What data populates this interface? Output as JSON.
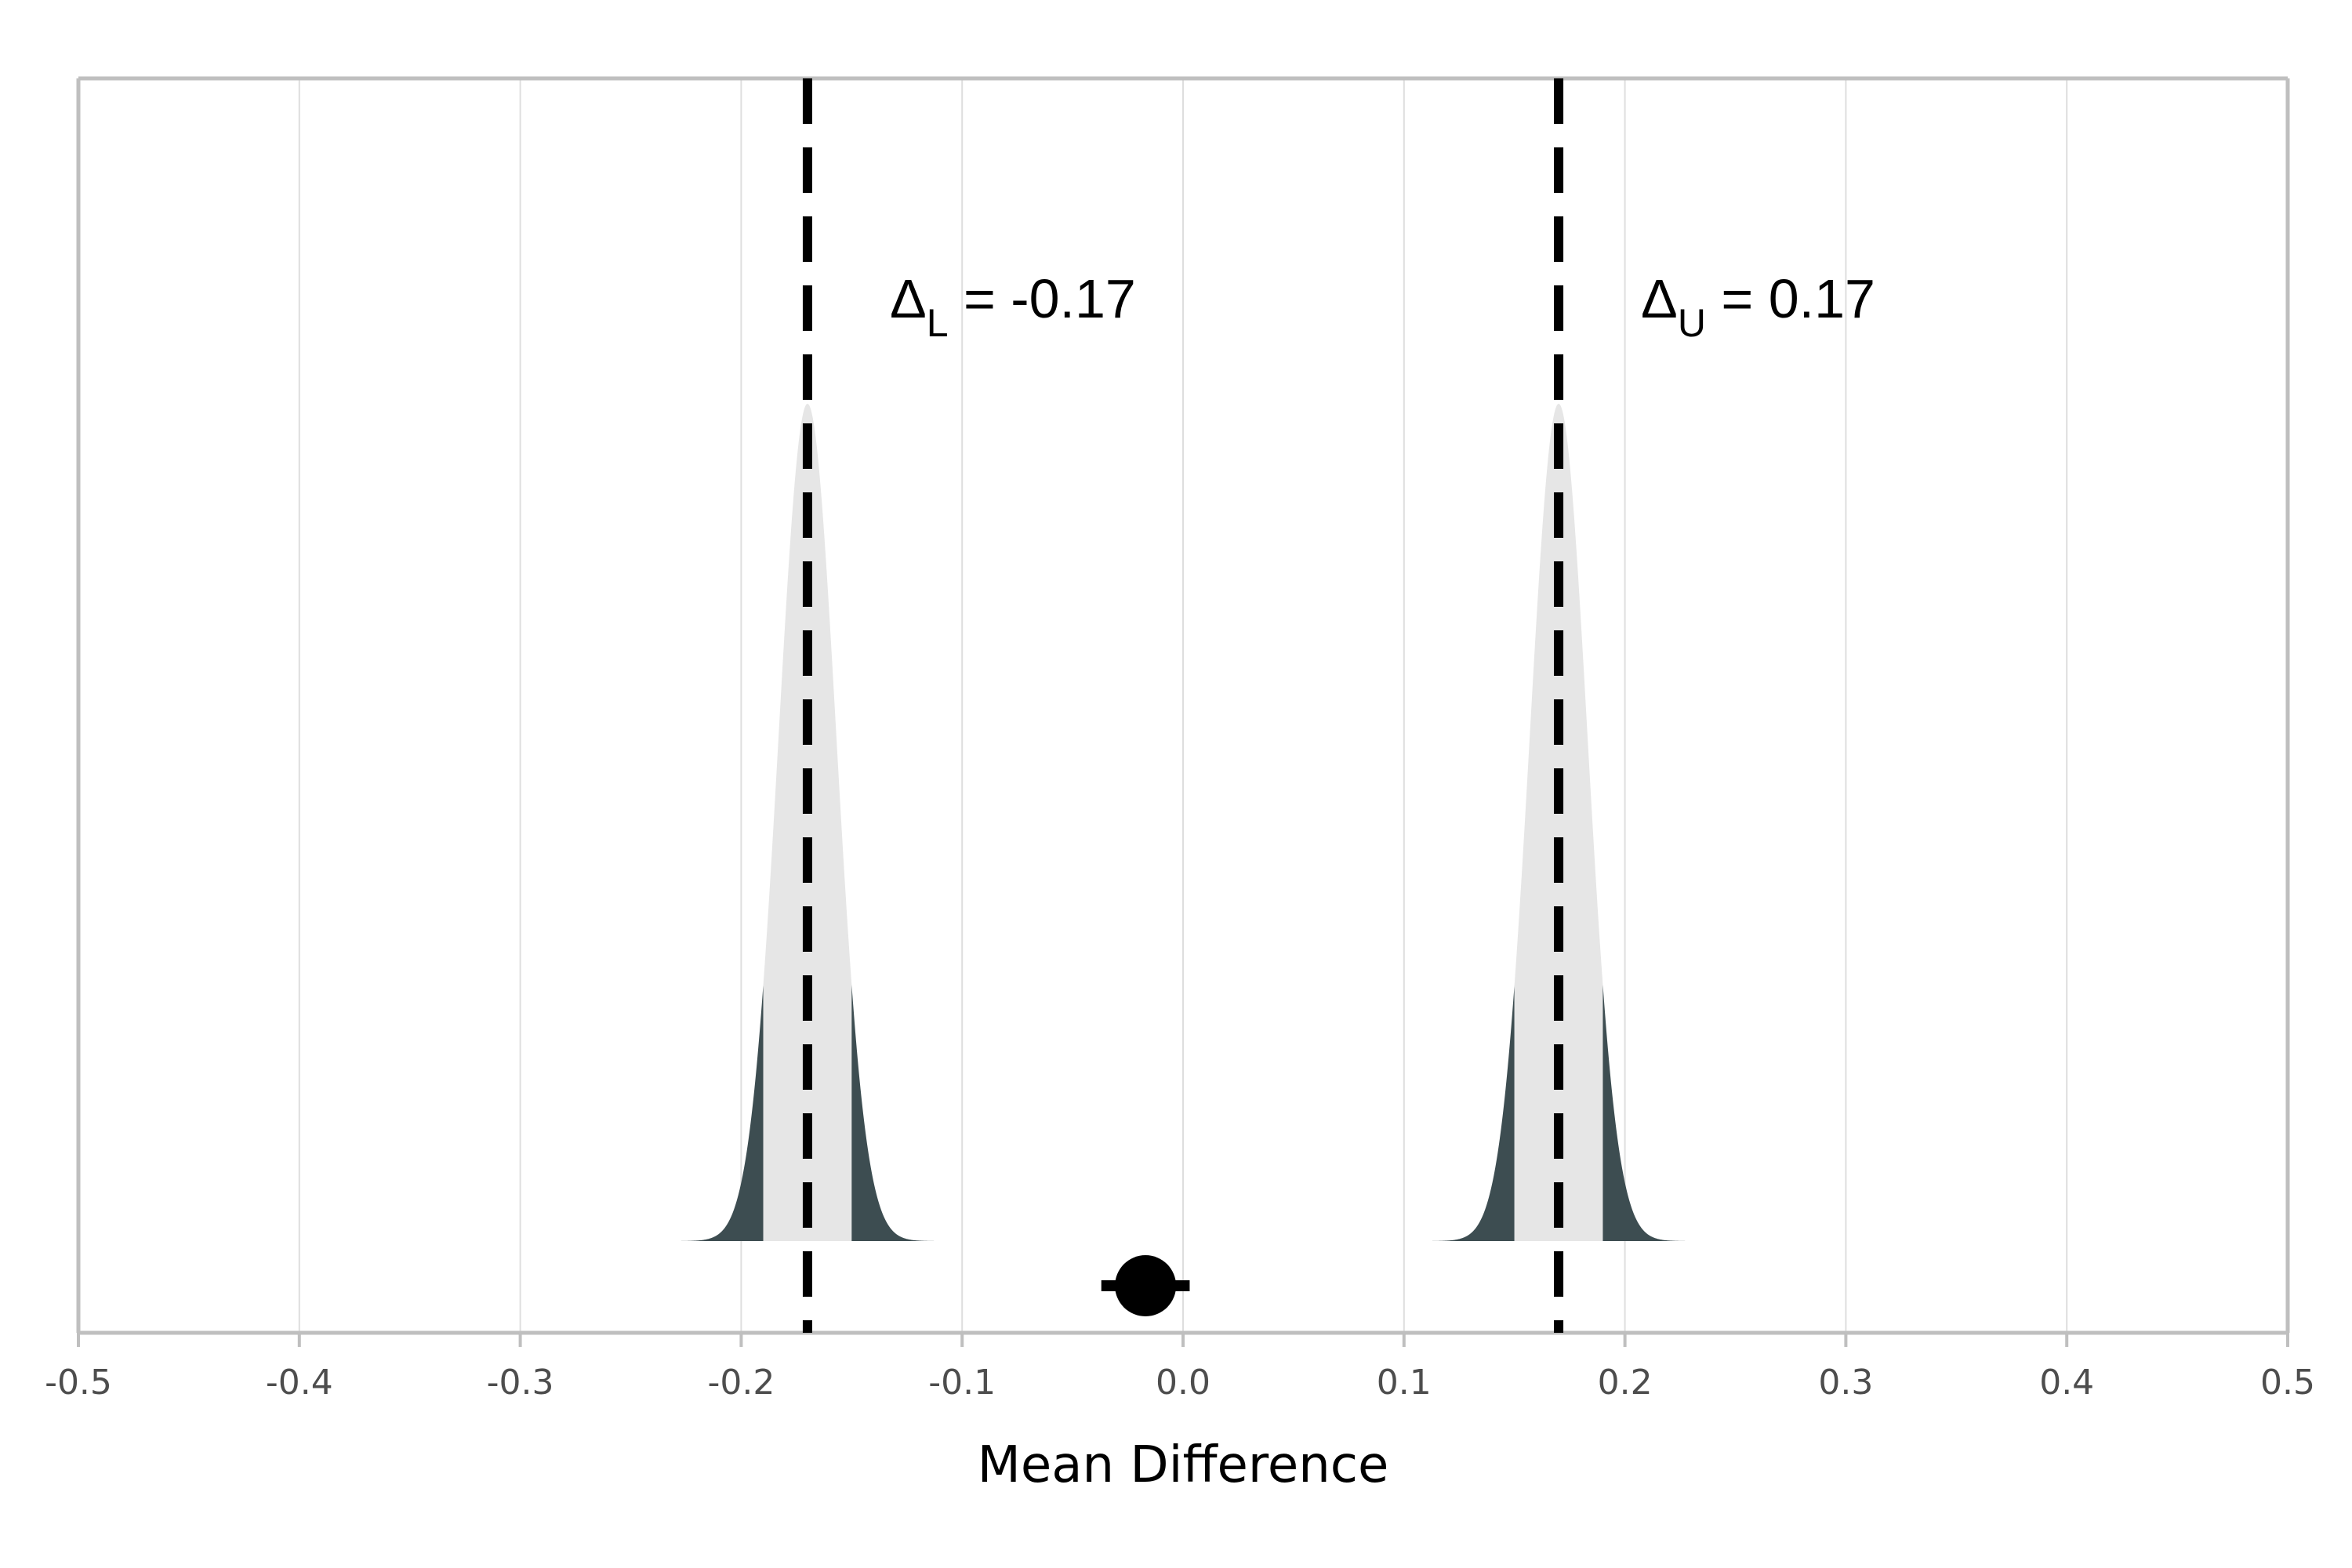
{
  "chart_data": {
    "type": "area",
    "xlabel": "Mean Difference",
    "ylabel": "",
    "xlim": [
      -0.5,
      0.5
    ],
    "x_ticks": [
      "-0.5",
      "-0.4",
      "-0.3",
      "-0.2",
      "-0.1",
      "0.0",
      "0.1",
      "0.2",
      "0.3",
      "0.4",
      "0.5"
    ],
    "grid": "vertical",
    "bounds": [
      {
        "symbol": "Δ",
        "subscript": "L",
        "text": " = -0.17",
        "value": -0.17
      },
      {
        "symbol": "Δ",
        "subscript": "U",
        "text": " = 0.17",
        "value": 0.17
      }
    ],
    "distributions": [
      {
        "center": -0.17,
        "sd": 0.013,
        "range": [
          -0.23,
          -0.11
        ],
        "inner_interval": [
          -0.19,
          -0.15
        ]
      },
      {
        "center": 0.17,
        "sd": 0.013,
        "range": [
          0.11,
          0.23
        ],
        "inner_interval": [
          0.15,
          0.19
        ]
      }
    ],
    "estimate": {
      "value": -0.017,
      "ci": [
        -0.037,
        0.003
      ]
    },
    "colors": {
      "tail_fill": "#3d4d51",
      "center_fill": "#e6e6e6",
      "grid": "#dedede",
      "axis": "#bfbfbf",
      "bound_line": "#000000",
      "point": "#000000"
    }
  }
}
